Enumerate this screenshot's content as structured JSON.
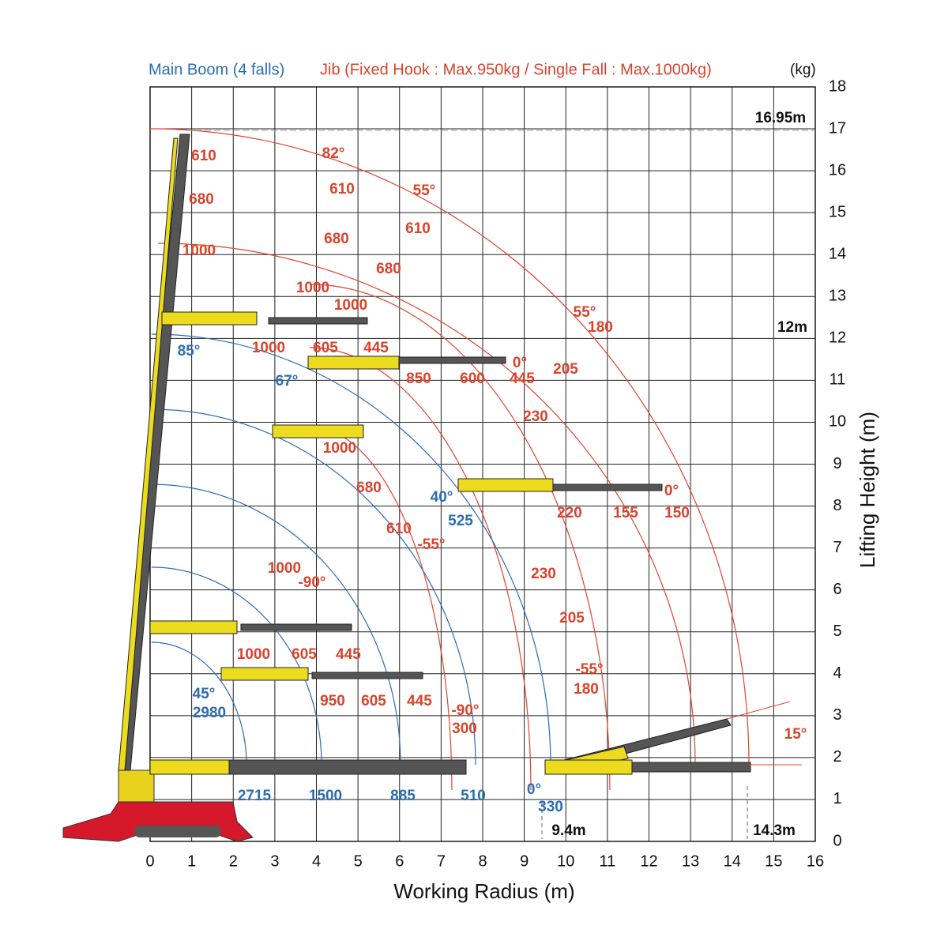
{
  "header": {
    "main_boom": "Main Boom (4 falls)",
    "jib": "Jib (Fixed Hook : Max.950kg / Single Fall : Max.1000kg)",
    "unit": "(kg)"
  },
  "axes": {
    "x_label": "Working Radius (m)",
    "y_label": "Lifting Height (m)",
    "x_ticks": [
      0,
      1,
      2,
      3,
      4,
      5,
      6,
      7,
      8,
      9,
      10,
      11,
      12,
      13,
      14,
      15,
      16
    ],
    "y_ticks": [
      0,
      1,
      2,
      3,
      4,
      5,
      6,
      7,
      8,
      9,
      10,
      11,
      12,
      13,
      14,
      15,
      16,
      17,
      18
    ]
  },
  "jib_labels": [
    "610",
    "680",
    "1000",
    "82°",
    "610",
    "55°",
    "610",
    "680",
    "680",
    "1000",
    "1000",
    "55°",
    "180",
    "1000",
    "605",
    "445",
    "0°",
    "850",
    "600",
    "445",
    "205",
    "230",
    "1000",
    "680",
    "0°",
    "220",
    "155",
    "150",
    "610",
    "-55°",
    "1000",
    "-90°",
    "230",
    "205",
    "1000",
    "605",
    "445",
    "-55°",
    "180",
    "950",
    "605",
    "445",
    "-90°",
    "300",
    "15°"
  ],
  "boom_labels": [
    "85°",
    "67°",
    "40°",
    "525",
    "45°",
    "2980",
    "2715",
    "1500",
    "885",
    "510",
    "0°",
    "330"
  ],
  "dimension_labels": [
    "16.95m",
    "12m",
    "9.4m",
    "14.3m"
  ]
}
